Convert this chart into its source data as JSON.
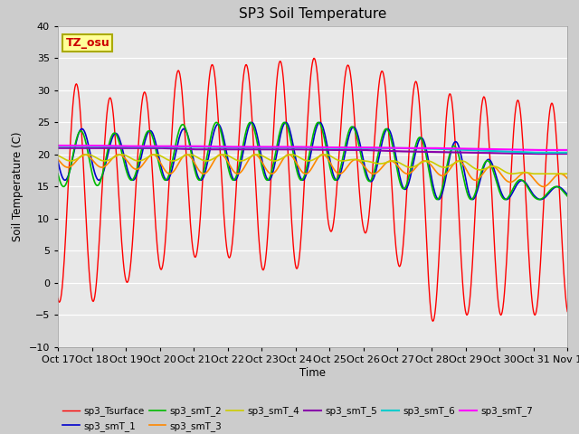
{
  "title": "SP3 Soil Temperature",
  "ylabel": "Soil Temperature (C)",
  "xlabel": "Time",
  "annotation": "TZ_osu",
  "ylim": [
    -10,
    40
  ],
  "yticks": [
    -10,
    -5,
    0,
    5,
    10,
    15,
    20,
    25,
    30,
    35,
    40
  ],
  "x_labels": [
    "Oct 17",
    "Oct 18",
    "Oct 19",
    "Oct 20",
    "Oct 21",
    "Oct 22",
    "Oct 23",
    "Oct 24",
    "Oct 25",
    "Oct 26",
    "Oct 27",
    "Oct 28",
    "Oct 29",
    "Oct 30",
    "Oct 31",
    "Nov 1"
  ],
  "series_colors": {
    "sp3_Tsurface": "#ff0000",
    "sp3_smT_1": "#0000cc",
    "sp3_smT_2": "#00bb00",
    "sp3_smT_3": "#ff8800",
    "sp3_smT_4": "#cccc00",
    "sp3_smT_5": "#8800aa",
    "sp3_smT_6": "#00cccc",
    "sp3_smT_7": "#ff00ff"
  },
  "legend_order": [
    "sp3_Tsurface",
    "sp3_smT_1",
    "sp3_smT_2",
    "sp3_smT_3",
    "sp3_smT_4",
    "sp3_smT_5",
    "sp3_smT_6",
    "sp3_smT_7"
  ]
}
